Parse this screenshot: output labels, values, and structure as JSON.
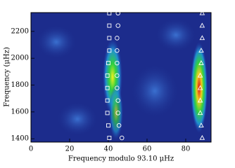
{
  "chart_data": {
    "type": "scatter",
    "xlabel": "Frequency modulo 93.10 μHz",
    "ylabel": "Frequency (μHz)",
    "xlim": [
      0,
      93.1
    ],
    "xticks": [
      0,
      20,
      40,
      60,
      80
    ],
    "ylim": [
      1375,
      2340
    ],
    "yticks": [
      1400,
      1600,
      1800,
      2000,
      2200
    ],
    "series": [
      {
        "marker": "square",
        "color": "#ffffff",
        "x": [
          40.5,
          40.5,
          40.5,
          40.5,
          40.0,
          39.5,
          39.5,
          39.5,
          39.5,
          40.0,
          40.5
        ],
        "values": [
          2336,
          2243,
          2150,
          2057,
          1964,
          1871,
          1778,
          1685,
          1592,
          1499,
          1406
        ]
      },
      {
        "marker": "circle",
        "color": "#ffffff",
        "x": [
          45.0,
          45.0,
          44.5,
          44.5,
          44.5,
          44.5,
          44.5,
          45.0,
          45.0,
          45.5,
          47.0
        ],
        "values": [
          2336,
          2243,
          2150,
          2057,
          1964,
          1871,
          1778,
          1685,
          1592,
          1499,
          1406
        ]
      },
      {
        "marker": "triangle",
        "color": "#ffffff",
        "x": [
          88.5,
          88.5,
          88.5,
          88.0,
          88.0,
          87.5,
          87.5,
          87.5,
          87.5,
          88.0,
          88.5
        ],
        "values": [
          2336,
          2243,
          2150,
          2057,
          1964,
          1871,
          1778,
          1685,
          1592,
          1499,
          1406
        ]
      }
    ]
  }
}
